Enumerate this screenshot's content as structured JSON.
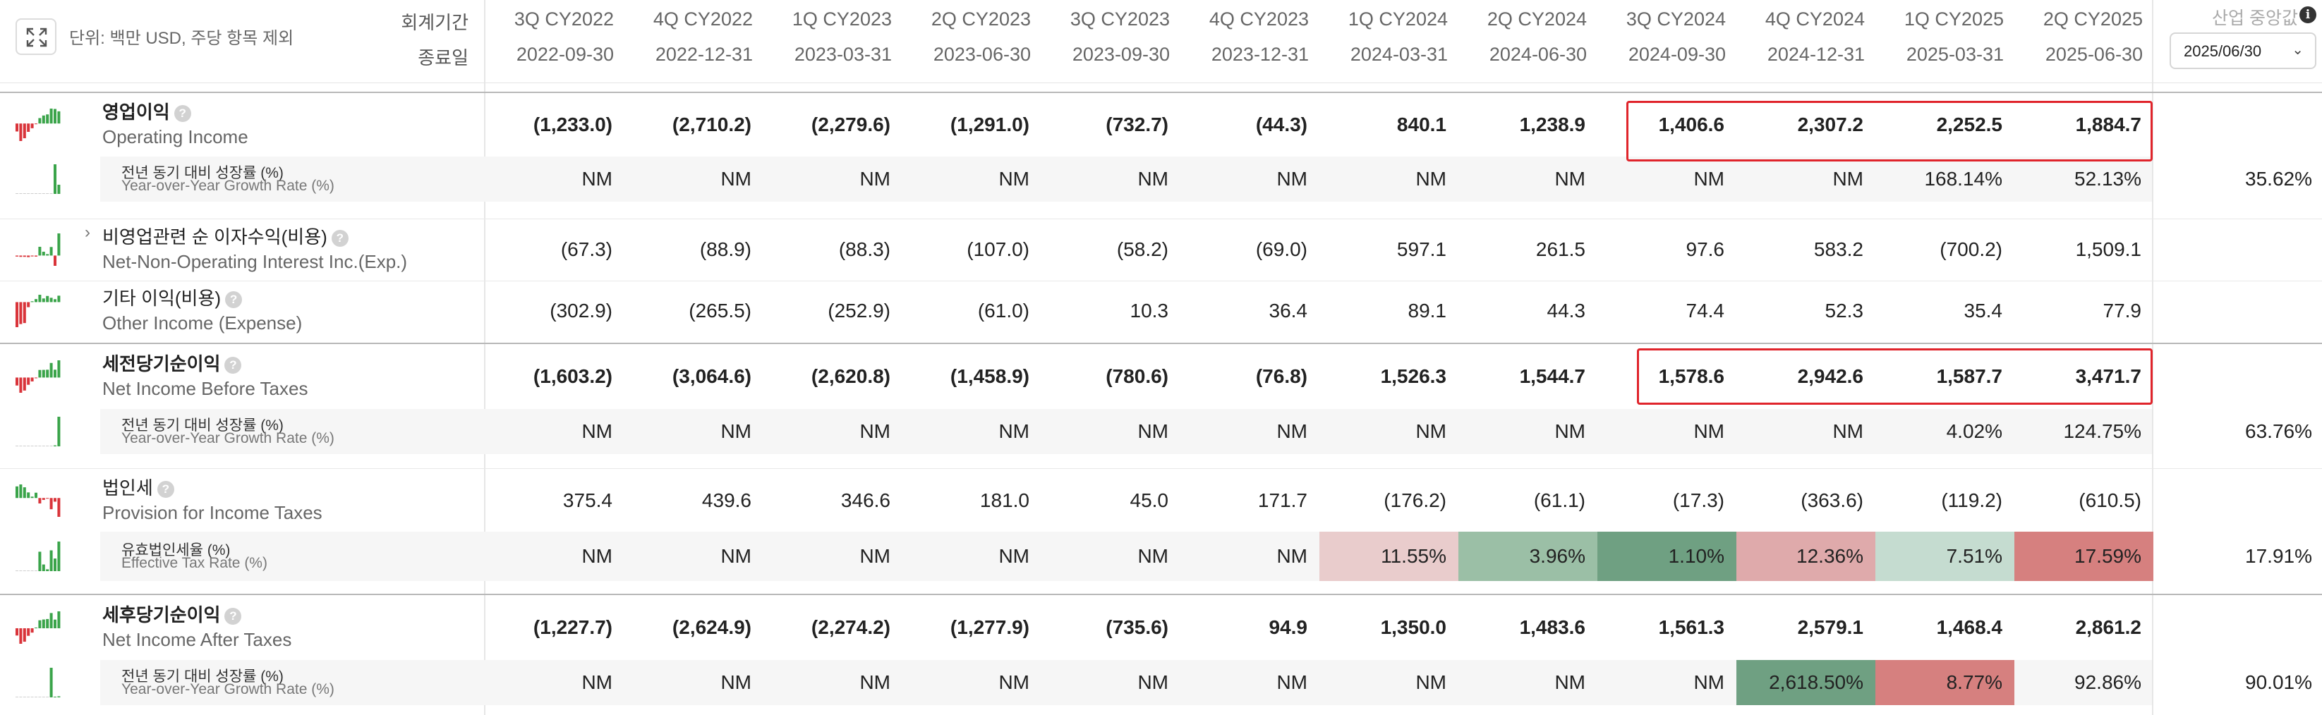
{
  "header": {
    "unit_label": "단위: 백만 USD, 주당 항목 제외",
    "period_caption": "회계기간",
    "date_caption": "종료일",
    "industry_median_label": "산업 중앙값",
    "selected_date": "2025/06/30",
    "expand_icon": "expand-icon",
    "info_icon": "i",
    "dropdown_icon": "⌄"
  },
  "periods": [
    "3Q CY2022",
    "4Q CY2022",
    "1Q CY2023",
    "2Q CY2023",
    "3Q CY2023",
    "4Q CY2023",
    "1Q CY2024",
    "2Q CY2024",
    "3Q CY2024",
    "4Q CY2024",
    "1Q CY2025",
    "2Q CY2025"
  ],
  "dates": [
    "2022-09-30",
    "2022-12-31",
    "2023-03-31",
    "2023-06-30",
    "2023-09-30",
    "2023-12-31",
    "2024-03-31",
    "2024-06-30",
    "2024-09-30",
    "2024-12-31",
    "2025-03-31",
    "2025-06-30"
  ],
  "rows": [
    {
      "type": "main",
      "ko": "영업이익",
      "en": "Operating Income",
      "bold": true,
      "help": "?",
      "values": [
        "(1,233.0)",
        "(2,710.2)",
        "(2,279.6)",
        "(1,291.0)",
        "(732.7)",
        "(44.3)",
        "840.1",
        "1,238.9",
        "1,406.6",
        "2,307.2",
        "2,252.5",
        "1,884.7"
      ]
    },
    {
      "type": "sub",
      "ko": "전년 동기 대비 성장률 (%)",
      "en": "Year-over-Year Growth Rate (%)",
      "values": [
        "NM",
        "NM",
        "NM",
        "NM",
        "NM",
        "NM",
        "NM",
        "NM",
        "NM",
        "NM",
        "168.14%",
        "52.13%"
      ],
      "industry": "35.62%"
    },
    {
      "type": "main",
      "ko": "비영업관련 순 이자수익(비용)",
      "en": "Net-Non-Operating Interest Inc.(Exp.)",
      "bold": false,
      "help": "?",
      "expand": "›",
      "values": [
        "(67.3)",
        "(88.9)",
        "(88.3)",
        "(107.0)",
        "(58.2)",
        "(69.0)",
        "597.1",
        "261.5",
        "97.6",
        "583.2",
        "(700.2)",
        "1,509.1"
      ]
    },
    {
      "type": "main",
      "ko": "기타 이익(비용)",
      "en": "Other Income (Expense)",
      "bold": false,
      "help": "?",
      "values": [
        "(302.9)",
        "(265.5)",
        "(252.9)",
        "(61.0)",
        "10.3",
        "36.4",
        "89.1",
        "44.3",
        "74.4",
        "52.3",
        "35.4",
        "77.9"
      ]
    },
    {
      "type": "main",
      "ko": "세전당기순이익",
      "en": "Net Income Before Taxes",
      "bold": true,
      "help": "?",
      "values": [
        "(1,603.2)",
        "(3,064.6)",
        "(2,620.8)",
        "(1,458.9)",
        "(780.6)",
        "(76.8)",
        "1,526.3",
        "1,544.7",
        "1,578.6",
        "2,942.6",
        "1,587.7",
        "3,471.7"
      ]
    },
    {
      "type": "sub",
      "ko": "전년 동기 대비 성장률 (%)",
      "en": "Year-over-Year Growth Rate (%)",
      "values": [
        "NM",
        "NM",
        "NM",
        "NM",
        "NM",
        "NM",
        "NM",
        "NM",
        "NM",
        "NM",
        "4.02%",
        "124.75%"
      ],
      "industry": "63.76%"
    },
    {
      "type": "main",
      "ko": "법인세",
      "en": "Provision for Income Taxes",
      "bold": false,
      "help": "?",
      "values": [
        "375.4",
        "439.6",
        "346.6",
        "181.0",
        "45.0",
        "171.7",
        "(176.2)",
        "(61.1)",
        "(17.3)",
        "(363.6)",
        "(119.2)",
        "(610.5)"
      ]
    },
    {
      "type": "sub",
      "ko": "유효법인세율 (%)",
      "en": "Effective Tax Rate (%)",
      "values": [
        "NM",
        "NM",
        "NM",
        "NM",
        "NM",
        "NM",
        "11.55%",
        "3.96%",
        "1.10%",
        "12.36%",
        "7.51%",
        "17.59%"
      ],
      "industry": "17.91%",
      "colors": [
        "",
        "",
        "",
        "",
        "",
        "",
        "#e9cccc",
        "#9bbfa6",
        "#6fa082",
        "#dfaaab",
        "#c5dcd0",
        "#d6807f"
      ]
    },
    {
      "type": "main",
      "ko": "세후당기순이익",
      "en": "Net Income After Taxes",
      "bold": true,
      "help": "?",
      "values": [
        "(1,227.7)",
        "(2,624.9)",
        "(2,274.2)",
        "(1,277.9)",
        "(735.6)",
        "94.9",
        "1,350.0",
        "1,483.6",
        "1,561.3",
        "2,579.1",
        "1,468.4",
        "2,861.2"
      ]
    },
    {
      "type": "sub",
      "ko": "전년 동기 대비 성장률 (%)",
      "en": "Year-over-Year Growth Rate (%)",
      "values": [
        "NM",
        "NM",
        "NM",
        "NM",
        "NM",
        "NM",
        "NM",
        "NM",
        "NM",
        "2,618.50%",
        "8.77%",
        "92.86%"
      ],
      "industry": "90.01%",
      "colors": [
        "",
        "",
        "",
        "",
        "",
        "",
        "",
        "",
        "",
        "#6fa082",
        "#d6807f",
        ""
      ]
    }
  ],
  "sparklines": [
    {
      "values": [
        -1233.0,
        -2710.2,
        -2279.6,
        -1291.0,
        -732.7,
        -44.3,
        840.1,
        1238.9,
        1406.6,
        2307.2,
        2252.5,
        1884.7
      ]
    },
    {
      "values": [
        0,
        0,
        0,
        0,
        0,
        0,
        0,
        0,
        0,
        0,
        168.14,
        52.13
      ]
    },
    {
      "values": [
        -67.3,
        -88.9,
        -88.3,
        -107.0,
        -58.2,
        -69.0,
        597.1,
        261.5,
        97.6,
        583.2,
        -700.2,
        1509.1
      ]
    },
    {
      "values": [
        -302.9,
        -265.5,
        -252.9,
        -61.0,
        10.3,
        36.4,
        89.1,
        44.3,
        74.4,
        52.3,
        35.4,
        77.9
      ]
    },
    {
      "values": [
        -1603.2,
        -3064.6,
        -2620.8,
        -1458.9,
        -780.6,
        -76.8,
        1526.3,
        1544.7,
        1578.6,
        2942.6,
        1587.7,
        3471.7
      ]
    },
    {
      "values": [
        0,
        0,
        0,
        0,
        0,
        0,
        0,
        0,
        0,
        0,
        4.02,
        124.75
      ]
    },
    {
      "values": [
        375.4,
        439.6,
        346.6,
        181.0,
        45.0,
        171.7,
        -176.2,
        -61.1,
        -17.3,
        -363.6,
        -119.2,
        -610.5
      ]
    },
    {
      "values": [
        0,
        0,
        0,
        0,
        0,
        0,
        11.55,
        3.96,
        1.1,
        12.36,
        7.51,
        17.59
      ]
    },
    {
      "values": [
        -1227.7,
        -2624.9,
        -2274.2,
        -1277.9,
        -735.6,
        94.9,
        1350.0,
        1483.6,
        1561.3,
        2579.1,
        1468.4,
        2861.2
      ]
    },
    {
      "values": [
        0,
        0,
        0,
        0,
        0,
        0,
        0,
        0,
        0,
        2618.5,
        8.77,
        92.86
      ]
    }
  ],
  "colors": {
    "positive": "#3aa44a",
    "negative": "#d9343a",
    "highlight_border": "#e0242b"
  }
}
